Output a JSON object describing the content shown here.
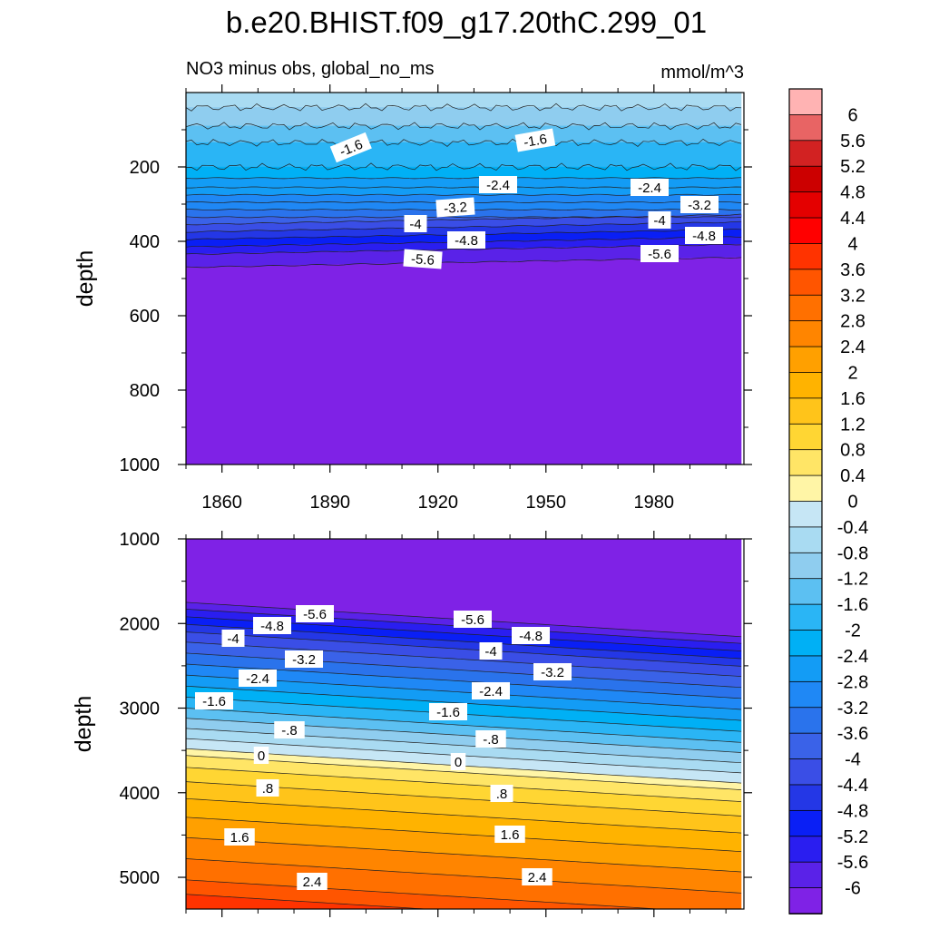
{
  "chart_data": {
    "type": "contour",
    "title": "b.e20.BHIST.f09_g17.20thC.299_01",
    "subtitle_left": "NO3 minus obs, global_no_ms",
    "subtitle_right": "mmol/m^3",
    "colorbar": {
      "levels": [
        "6",
        "5.6",
        "5.2",
        "4.8",
        "4.4",
        "4",
        "3.6",
        "3.2",
        "2.8",
        "2.4",
        "2",
        "1.6",
        "1.2",
        "0.8",
        "0.4",
        "0",
        "-0.4",
        "-0.8",
        "-1.2",
        "-1.6",
        "-2",
        "-2.4",
        "-2.8",
        "-3.2",
        "-3.6",
        "-4",
        "-4.4",
        "-4.8",
        "-5.2",
        "-5.6",
        "-6"
      ],
      "colors": [
        "#ffb3b3",
        "#e86464",
        "#d22222",
        "#cc0000",
        "#e40000",
        "#ff0000",
        "#ff3300",
        "#ff5500",
        "#ff7000",
        "#ff8500",
        "#ffa000",
        "#ffb300",
        "#ffc41a",
        "#ffd633",
        "#ffe566",
        "#fff5a6",
        "#c6e6f5",
        "#a9dbf2",
        "#8fcdef",
        "#5cc0f2",
        "#2ab5f5",
        "#00b0f5",
        "#139cf5",
        "#1f88f5",
        "#2a73ec",
        "#3a62e8",
        "#3a4ee6",
        "#2437e6",
        "#0a1ff5",
        "#2a1ef0",
        "#5a22e8",
        "#7f22e6"
      ]
    },
    "panels": [
      {
        "ylabel": "depth",
        "yticks": [
          "200",
          "400",
          "600",
          "800",
          "1000"
        ],
        "ylim": [
          0,
          1000
        ],
        "xticks": [
          "1860",
          "1890",
          "1920",
          "1950",
          "1980"
        ],
        "xlim": [
          1850,
          2005
        ],
        "contour_labels": [
          "-1.6",
          "-1.6",
          "-2.4",
          "-2.4",
          "-3.2",
          "-3.2",
          "-4",
          "-4",
          "-4.8",
          "-4.8",
          "-5.6",
          "-5.6"
        ]
      },
      {
        "ylabel": "depth",
        "yticks": [
          "1000",
          "2000",
          "3000",
          "4000",
          "5000"
        ],
        "ylim": [
          1000,
          5375
        ],
        "xlim": [
          1850,
          2005
        ],
        "contour_labels": [
          "-5.6",
          "-5.6",
          "-4.8",
          "-4.8",
          "-4",
          "-4",
          "-3.2",
          "-3.2",
          "-2.4",
          "-2.4",
          "-1.6",
          "-1.6",
          "-.8",
          "-.8",
          "0",
          "0",
          ".8",
          ".8",
          "1.6",
          "1.6",
          "2.4",
          "2.4"
        ]
      }
    ]
  }
}
